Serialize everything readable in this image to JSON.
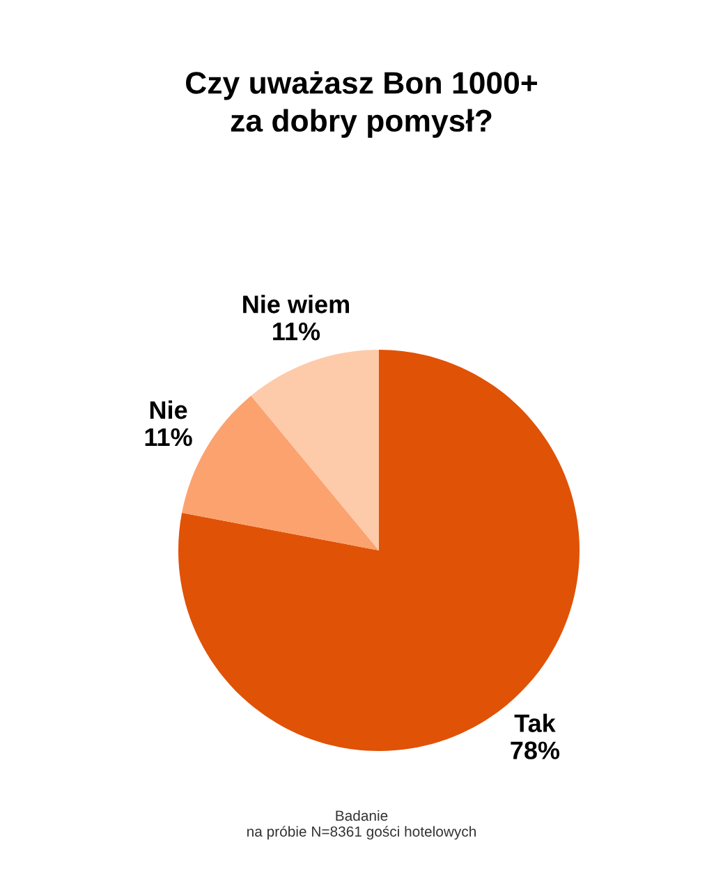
{
  "chart_data": {
    "type": "pie",
    "title": "Czy uważasz Bon 1000+\nza dobry pomysł?",
    "categories": [
      "Tak",
      "Nie",
      "Nie wiem"
    ],
    "values": [
      78,
      11,
      11
    ],
    "value_labels": [
      "78%",
      "11%",
      "11%"
    ],
    "colors": [
      "#e05206",
      "#fba26f",
      "#fdcaaa"
    ],
    "annotations": [
      "Badanie\nna próbie N=8361 gości hotelowych"
    ]
  }
}
